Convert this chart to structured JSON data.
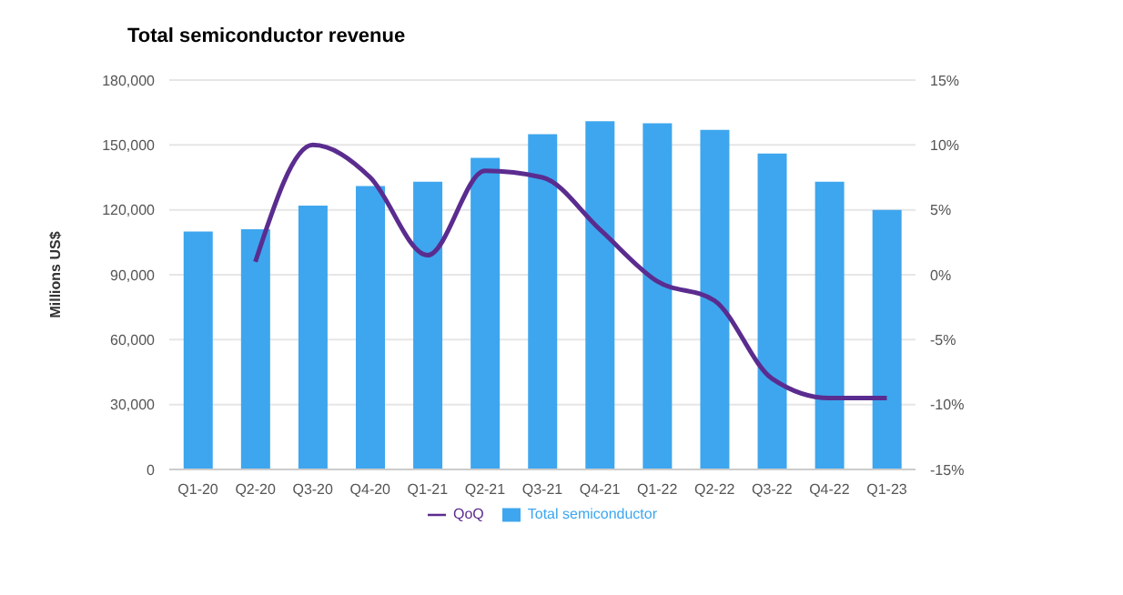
{
  "chart_data": {
    "type": "bar",
    "title": "Total semiconductor revenue",
    "ylabel": "Millions US$",
    "categories": [
      "Q1-20",
      "Q2-20",
      "Q3-20",
      "Q4-20",
      "Q1-21",
      "Q2-21",
      "Q3-21",
      "Q4-21",
      "Q1-22",
      "Q2-22",
      "Q3-22",
      "Q4-22",
      "Q1-23"
    ],
    "series": [
      {
        "name": "Total semiconductor",
        "color": "#3ea6ee",
        "values": [
          110000,
          111000,
          122000,
          131000,
          133000,
          144000,
          155000,
          161000,
          160000,
          157000,
          146000,
          133000,
          120000
        ]
      },
      {
        "name": "QoQ",
        "type": "line",
        "axis": "y2",
        "color": "#5b2c8f",
        "values": [
          null,
          1,
          10,
          7.5,
          1.5,
          8,
          7.5,
          3.5,
          -0.5,
          -2,
          -8,
          -9.5,
          -9.5
        ]
      }
    ],
    "ylim": [
      0,
      180000
    ],
    "yticks": [
      {
        "value": 0,
        "label": "0"
      },
      {
        "value": 30000,
        "label": "30,000"
      },
      {
        "value": 60000,
        "label": "60,000"
      },
      {
        "value": 90000,
        "label": "90,000"
      },
      {
        "value": 120000,
        "label": "120,000"
      },
      {
        "value": 150000,
        "label": "150,000"
      },
      {
        "value": 180000,
        "label": "180,000"
      }
    ],
    "y2lim": [
      -15,
      15
    ],
    "y2ticks": [
      {
        "value": -15,
        "label": "-15%"
      },
      {
        "value": -10,
        "label": "-10%"
      },
      {
        "value": -5,
        "label": "-5%"
      },
      {
        "value": 0,
        "label": "0%"
      },
      {
        "value": 5,
        "label": "5%"
      },
      {
        "value": 10,
        "label": "10%"
      },
      {
        "value": 15,
        "label": "15%"
      }
    ],
    "grid": "y",
    "legend": "bottom",
    "marker": "none",
    "line_style": "solid"
  }
}
